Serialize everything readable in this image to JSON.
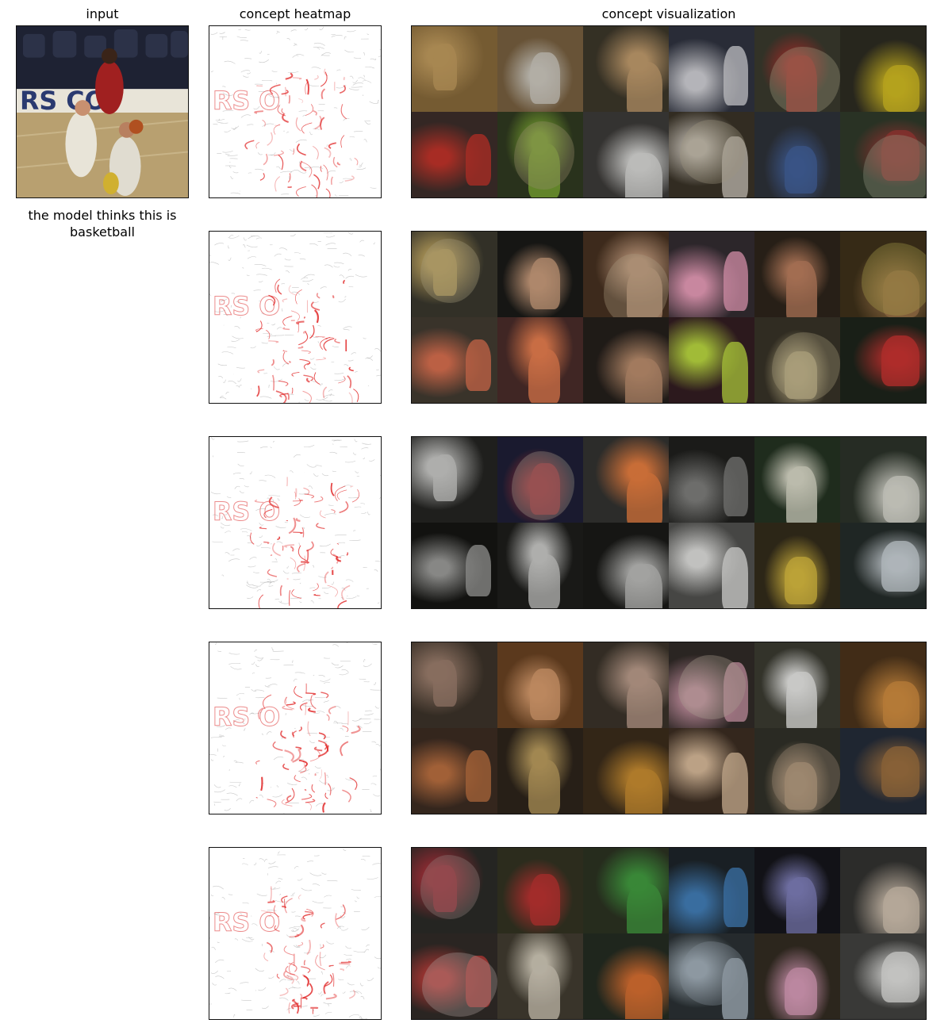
{
  "headers": {
    "input": "input",
    "heatmap": "concept heatmap",
    "visualization": "concept visualization"
  },
  "prediction_caption": "the model thinks this is basketball",
  "concept_rows": [
    {
      "tiles": [
        {
          "bg": "#8a6a3a",
          "fg": "#c8a060",
          "blob": "none"
        },
        {
          "bg": "#7a6040",
          "fg": "#d4d0c8",
          "blob": "none"
        },
        {
          "bg": "#3a3428",
          "fg": "#c8a070",
          "blob": "none"
        },
        {
          "bg": "#2c3040",
          "fg": "#d8d8e0",
          "blob": "none"
        },
        {
          "bg": "#3a3a30",
          "fg": "#c03030",
          "blob": "#d8cfa8"
        },
        {
          "bg": "#2a2820",
          "fg": "#d8c020",
          "blob": "none"
        },
        {
          "bg": "#3a2a28",
          "fg": "#c83028",
          "blob": "none"
        },
        {
          "bg": "#2e3a20",
          "fg": "#90c838",
          "blob": "#c8b890"
        },
        {
          "bg": "#3a3838",
          "fg": "#e0e0e0",
          "blob": "none"
        },
        {
          "bg": "#3a3228",
          "fg": "#e8e0d8",
          "blob": "#cfc4a8"
        },
        {
          "bg": "#2a2e38",
          "fg": "#4060a0",
          "blob": "none"
        },
        {
          "bg": "#2e3a2c",
          "fg": "#b03838",
          "blob": "#c0c8b0"
        }
      ]
    },
    {
      "tiles": [
        {
          "bg": "#3a3830",
          "fg": "#e0c070",
          "blob": "#d8c8a0"
        },
        {
          "bg": "#141414",
          "fg": "#d0a080",
          "blob": "none"
        },
        {
          "bg": "#4a3020",
          "fg": "#e0b090",
          "blob": "#e0c8a8"
        },
        {
          "bg": "#302830",
          "fg": "#f0a0c0",
          "blob": "none"
        },
        {
          "bg": "#2a2018",
          "fg": "#c08060",
          "blob": "none"
        },
        {
          "bg": "#403018",
          "fg": "#b08050",
          "blob": "#e0d060"
        },
        {
          "bg": "#403830",
          "fg": "#e07050",
          "blob": "none"
        },
        {
          "bg": "#482828",
          "fg": "#f08050",
          "blob": "none"
        },
        {
          "bg": "#201a18",
          "fg": "#c09070",
          "blob": "none"
        },
        {
          "bg": "#301820",
          "fg": "#c0e040",
          "blob": "none"
        },
        {
          "bg": "#383228",
          "fg": "#e0d0a0",
          "blob": "#d8c8a0"
        },
        {
          "bg": "#182018",
          "fg": "#d03030",
          "blob": "none"
        }
      ]
    },
    {
      "tiles": [
        {
          "bg": "#202020",
          "fg": "#d0d0d0",
          "blob": "none"
        },
        {
          "bg": "#1a1a3a",
          "fg": "#c03040",
          "blob": "#d0c8b8"
        },
        {
          "bg": "#303030",
          "fg": "#f08040",
          "blob": "none"
        },
        {
          "bg": "#1a1a1a",
          "fg": "#808080",
          "blob": "none"
        },
        {
          "bg": "#203020",
          "fg": "#e0e0d0",
          "blob": "none"
        },
        {
          "bg": "#283028",
          "fg": "#e0e0d8",
          "blob": "none"
        },
        {
          "bg": "#101010",
          "fg": "#a0a0a0",
          "blob": "none"
        },
        {
          "bg": "#181818",
          "fg": "#d0d0d0",
          "blob": "none"
        },
        {
          "bg": "#141414",
          "fg": "#c0c0c0",
          "blob": "none"
        },
        {
          "bg": "#505050",
          "fg": "#e8e8e8",
          "blob": "none"
        },
        {
          "bg": "#302818",
          "fg": "#e0c040",
          "blob": "none"
        },
        {
          "bg": "#202828",
          "fg": "#d0d8e0",
          "blob": "none"
        }
      ]
    },
    {
      "tiles": [
        {
          "bg": "#3a3028",
          "fg": "#a08070",
          "blob": "none"
        },
        {
          "bg": "#6a4020",
          "fg": "#e0a070",
          "blob": "none"
        },
        {
          "bg": "#383028",
          "fg": "#c0a090",
          "blob": "none"
        },
        {
          "bg": "#302828",
          "fg": "#e8a8c0",
          "blob": "#e0d0c0"
        },
        {
          "bg": "#383830",
          "fg": "#f0f0f0",
          "blob": "none"
        },
        {
          "bg": "#4a3018",
          "fg": "#d89040",
          "blob": "none"
        },
        {
          "bg": "#3a2820",
          "fg": "#c07040",
          "blob": "none"
        },
        {
          "bg": "#2a2018",
          "fg": "#c0a060",
          "blob": "none"
        },
        {
          "bg": "#382818",
          "fg": "#d09030",
          "blob": "none"
        },
        {
          "bg": "#3a2a20",
          "fg": "#e0c0a0",
          "blob": "none"
        },
        {
          "bg": "#30302a",
          "fg": "#d0b090",
          "blob": "#c8b098"
        },
        {
          "bg": "#202838",
          "fg": "#a07040",
          "blob": "none"
        }
      ]
    },
    {
      "tiles": [
        {
          "bg": "#282828",
          "fg": "#c03040",
          "blob": "#c0a8a8"
        },
        {
          "bg": "#303020",
          "fg": "#c03030",
          "blob": "none"
        },
        {
          "bg": "#283020",
          "fg": "#40a040",
          "blob": "none"
        },
        {
          "bg": "#182028",
          "fg": "#4080c0",
          "blob": "none"
        },
        {
          "bg": "#101018",
          "fg": "#8080c0",
          "blob": "none"
        },
        {
          "bg": "#303030",
          "fg": "#d8c8b8",
          "blob": "none"
        },
        {
          "bg": "#302828",
          "fg": "#e04040",
          "blob": "#e0d0d0"
        },
        {
          "bg": "#403a30",
          "fg": "#d8d0c0",
          "blob": "none"
        },
        {
          "bg": "#202820",
          "fg": "#e07030",
          "blob": "none"
        },
        {
          "bg": "#283038",
          "fg": "#c0d0e0",
          "blob": "#a8b8c8"
        },
        {
          "bg": "#302820",
          "fg": "#e0a0c0",
          "blob": "none"
        },
        {
          "bg": "#404040",
          "fg": "#e8e8e8",
          "blob": "none"
        }
      ]
    }
  ]
}
